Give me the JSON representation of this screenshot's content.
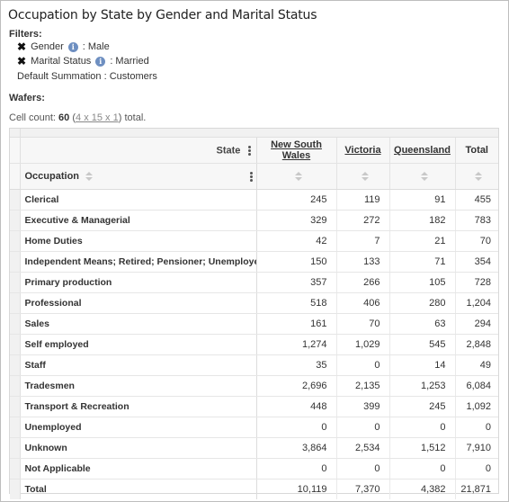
{
  "title": "Occupation by State by Gender and Marital Status",
  "filters": {
    "label": "Filters:",
    "items": [
      {
        "name": "Gender",
        "value": ": Male"
      },
      {
        "name": "Marital Status",
        "value": ": Married"
      }
    ],
    "summation": "Default Summation : Customers"
  },
  "wafers": {
    "label": "Wafers:"
  },
  "cell_count": {
    "prefix": "Cell count:",
    "count": "60",
    "dims": "4 x 15 x 1",
    "suffix": "total."
  },
  "table": {
    "state_label": "State",
    "occupation_label": "Occupation",
    "columns": [
      "New South Wales",
      "Victoria",
      "Queensland",
      "Total"
    ],
    "rows": [
      {
        "label": "Clerical",
        "values": [
          "245",
          "119",
          "91",
          "455"
        ]
      },
      {
        "label": "Executive & Managerial",
        "values": [
          "329",
          "272",
          "182",
          "783"
        ]
      },
      {
        "label": "Home Duties",
        "values": [
          "42",
          "7",
          "21",
          "70"
        ]
      },
      {
        "label": "Independent Means; Retired; Pensioner; Unemployed",
        "values": [
          "150",
          "133",
          "71",
          "354"
        ]
      },
      {
        "label": "Primary production",
        "values": [
          "357",
          "266",
          "105",
          "728"
        ]
      },
      {
        "label": "Professional",
        "values": [
          "518",
          "406",
          "280",
          "1,204"
        ]
      },
      {
        "label": "Sales",
        "values": [
          "161",
          "70",
          "63",
          "294"
        ]
      },
      {
        "label": "Self employed",
        "values": [
          "1,274",
          "1,029",
          "545",
          "2,848"
        ]
      },
      {
        "label": "Staff",
        "values": [
          "35",
          "0",
          "14",
          "49"
        ]
      },
      {
        "label": "Tradesmen",
        "values": [
          "2,696",
          "2,135",
          "1,253",
          "6,084"
        ]
      },
      {
        "label": "Transport & Recreation",
        "values": [
          "448",
          "399",
          "245",
          "1,092"
        ]
      },
      {
        "label": "Unemployed",
        "values": [
          "0",
          "0",
          "0",
          "0"
        ]
      },
      {
        "label": "Unknown",
        "values": [
          "3,864",
          "2,534",
          "1,512",
          "7,910"
        ]
      },
      {
        "label": "Not Applicable",
        "values": [
          "0",
          "0",
          "0",
          "0"
        ]
      },
      {
        "label": "Total",
        "values": [
          "10,119",
          "7,370",
          "4,382",
          "21,871"
        ]
      }
    ]
  }
}
